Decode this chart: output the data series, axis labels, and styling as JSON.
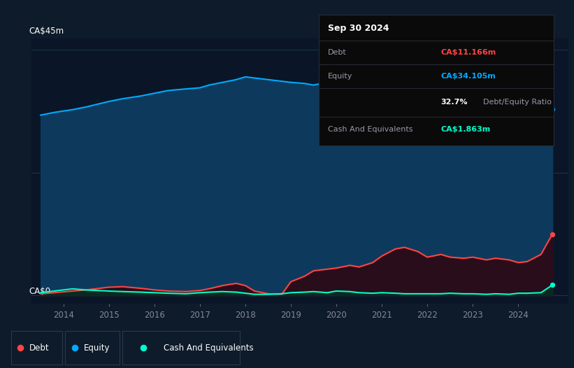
{
  "background_color": "#0d1b2a",
  "chart_area_color": "#0a1628",
  "ylabel": "CA$45m",
  "y0label": "CA$0",
  "ylim": [
    -1.5,
    47
  ],
  "years_equity": [
    2013.5,
    2013.8,
    2014.2,
    2014.5,
    2015.0,
    2015.3,
    2015.7,
    2016.0,
    2016.3,
    2016.7,
    2017.0,
    2017.2,
    2017.5,
    2017.8,
    2018.0,
    2018.2,
    2018.5,
    2018.8,
    2019.0,
    2019.3,
    2019.5,
    2019.8,
    2020.0,
    2020.3,
    2020.5,
    2020.8,
    2021.0,
    2021.3,
    2021.5,
    2021.8,
    2022.0,
    2022.3,
    2022.5,
    2022.8,
    2023.0,
    2023.3,
    2023.5,
    2023.8,
    2024.0,
    2024.2,
    2024.5,
    2024.75
  ],
  "equity": [
    33,
    33.5,
    34,
    34.5,
    35.5,
    36,
    36.5,
    37,
    37.5,
    37.8,
    38,
    38.5,
    39,
    39.5,
    40,
    39.8,
    39.5,
    39.2,
    39,
    38.8,
    38.5,
    39,
    38.5,
    38,
    37.5,
    36,
    33,
    32,
    31,
    32,
    35,
    36,
    37,
    37.5,
    37,
    36.8,
    37,
    36.5,
    36,
    35.5,
    35,
    34.1
  ],
  "years_debt": [
    2013.5,
    2013.8,
    2014.2,
    2014.5,
    2015.0,
    2015.3,
    2015.7,
    2016.0,
    2016.3,
    2016.7,
    2017.0,
    2017.2,
    2017.5,
    2017.8,
    2018.0,
    2018.2,
    2018.5,
    2018.8,
    2019.0,
    2019.3,
    2019.5,
    2019.8,
    2020.0,
    2020.3,
    2020.5,
    2020.8,
    2021.0,
    2021.3,
    2021.5,
    2021.8,
    2022.0,
    2022.3,
    2022.5,
    2022.8,
    2023.0,
    2023.3,
    2023.5,
    2023.8,
    2024.0,
    2024.2,
    2024.5,
    2024.75
  ],
  "debt": [
    0.3,
    0.5,
    0.8,
    1.0,
    1.5,
    1.6,
    1.3,
    1.0,
    0.8,
    0.7,
    0.9,
    1.2,
    1.8,
    2.2,
    1.8,
    0.8,
    0.3,
    0.2,
    2.5,
    3.5,
    4.5,
    4.8,
    5.0,
    5.5,
    5.2,
    6.0,
    7.2,
    8.5,
    8.8,
    8.0,
    7.0,
    7.5,
    7.0,
    6.8,
    7.0,
    6.5,
    6.8,
    6.5,
    6.0,
    6.2,
    7.5,
    11.2
  ],
  "years_cash": [
    2013.5,
    2013.8,
    2014.2,
    2014.5,
    2015.0,
    2015.3,
    2015.7,
    2016.0,
    2016.3,
    2016.7,
    2017.0,
    2017.2,
    2017.5,
    2017.8,
    2018.0,
    2018.2,
    2018.5,
    2018.8,
    2019.0,
    2019.3,
    2019.5,
    2019.8,
    2020.0,
    2020.3,
    2020.5,
    2020.8,
    2021.0,
    2021.3,
    2021.5,
    2021.8,
    2022.0,
    2022.3,
    2022.5,
    2022.8,
    2023.0,
    2023.3,
    2023.5,
    2023.8,
    2024.0,
    2024.2,
    2024.5,
    2024.75
  ],
  "cash": [
    0.5,
    0.8,
    1.2,
    1.0,
    0.8,
    0.7,
    0.6,
    0.5,
    0.4,
    0.3,
    0.5,
    0.6,
    0.7,
    0.6,
    0.4,
    0.2,
    0.2,
    0.3,
    0.5,
    0.6,
    0.7,
    0.5,
    0.8,
    0.7,
    0.5,
    0.4,
    0.5,
    0.4,
    0.3,
    0.3,
    0.3,
    0.3,
    0.4,
    0.3,
    0.3,
    0.2,
    0.3,
    0.2,
    0.4,
    0.4,
    0.5,
    1.9
  ],
  "equity_color": "#00aaff",
  "equity_fill": "#0d3a5c",
  "debt_color": "#ff4444",
  "debt_fill": "#2a0d1a",
  "cash_color": "#00ffcc",
  "cash_fill": "#0a2a20",
  "xticks": [
    2014,
    2015,
    2016,
    2017,
    2018,
    2019,
    2020,
    2021,
    2022,
    2023,
    2024
  ],
  "xtick_labels": [
    "2014",
    "2015",
    "2016",
    "2017",
    "2018",
    "2019",
    "2020",
    "2021",
    "2022",
    "2023",
    "2024"
  ],
  "grid_color": "#1e3a50",
  "tooltip_title": "Sep 30 2024",
  "tooltip_debt_label": "Debt",
  "tooltip_debt_value": "CA$11.166m",
  "tooltip_equity_label": "Equity",
  "tooltip_equity_value": "CA$34.105m",
  "tooltip_ratio": "32.7%",
  "tooltip_ratio_text": "Debt/Equity Ratio",
  "tooltip_cash_label": "Cash And Equivalents",
  "tooltip_cash_value": "CA$1.863m",
  "tooltip_bg": "#0a0a0a",
  "tooltip_border": "#2a2a3a",
  "legend_debt_label": "Debt",
  "legend_equity_label": "Equity",
  "legend_cash_label": "Cash And Equivalents",
  "xmin": 2013.3,
  "xmax": 2025.1
}
